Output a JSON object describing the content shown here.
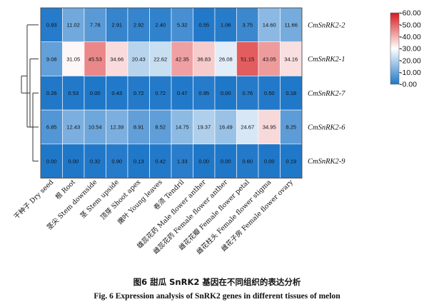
{
  "chart_data": {
    "type": "heatmap",
    "title": "",
    "xlabel": "",
    "ylabel": "",
    "columns": [
      "干种子 Dry seed",
      "根 Root",
      "茎尖 Stem downside",
      "茎 Stem upside",
      "顶芽 Shoot apex",
      "嫩叶 Young leaves",
      "卷须 Tendril",
      "雄蕊花药 Male flower anther",
      "雌蕊花药 Female flower anther",
      "雌花花瓣 Female flower petal",
      "雌花柱头 Female flower stigma",
      "雌花子房 Female flower ovary"
    ],
    "rows": [
      {
        "name": "CmSnRK2-2",
        "values": [
          0.93,
          11.02,
          7.78,
          2.91,
          2.92,
          2.4,
          5.32,
          0.55,
          1.06,
          3.75,
          14.6,
          11.66
        ]
      },
      {
        "name": "CmSnRK2-1",
        "values": [
          9.08,
          31.05,
          45.53,
          34.66,
          20.43,
          22.62,
          42.35,
          36.83,
          26.08,
          51.15,
          43.05,
          34.16
        ]
      },
      {
        "name": "CmSnRK2-7",
        "values": [
          0.26,
          0.53,
          0.0,
          0.43,
          0.72,
          0.72,
          0.47,
          0.95,
          0.0,
          0.76,
          0.5,
          0.18
        ]
      },
      {
        "name": "CmSnRK2-6",
        "values": [
          6.85,
          12.43,
          10.54,
          12.39,
          8.91,
          8.52,
          14.75,
          19.37,
          16.49,
          24.67,
          34.95,
          8.25
        ]
      },
      {
        "name": "CmSnRK2-9",
        "values": [
          0.0,
          0.0,
          0.32,
          0.9,
          0.13,
          0.42,
          1.33,
          0.0,
          0.0,
          0.6,
          0.0,
          0.19
        ]
      }
    ],
    "value_range": [
      0,
      60
    ],
    "color_scale": {
      "low": "#1f77c8",
      "mid": "#ffffff",
      "high": "#d7191c",
      "ticks": [
        "60.00",
        "50.00",
        "40.00",
        "30.00",
        "20.00",
        "10.00",
        "0.00"
      ],
      "tick_values": [
        60,
        50,
        40,
        30,
        20,
        10,
        0
      ]
    },
    "legend_position": "right"
  },
  "caption": {
    "chinese": "图6   甜瓜 SnRK2 基因在不同组织的表达分析",
    "english": "Fig. 6    Expression analysis of SnRK2 genes in different tissues of melon"
  }
}
